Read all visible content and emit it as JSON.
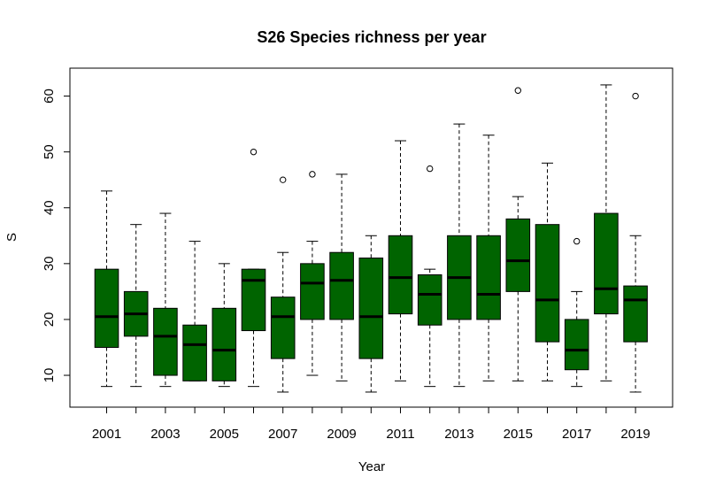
{
  "chart_data": {
    "type": "boxplot",
    "title": "S26 Species richness per year",
    "xlabel": "Year",
    "ylabel": "S",
    "ylim": [
      4.3,
      65
    ],
    "yticks": [
      10,
      20,
      30,
      40,
      50,
      60
    ],
    "xtick_labels_shown": [
      "2001",
      "2003",
      "2005",
      "2007",
      "2009",
      "2011",
      "2013",
      "2015",
      "2017",
      "2019"
    ],
    "box_color": "#006400",
    "categories": [
      "2001",
      "2002",
      "2003",
      "2004",
      "2005",
      "2006",
      "2007",
      "2008",
      "2009",
      "2010",
      "2011",
      "2012",
      "2013",
      "2014",
      "2015",
      "2016",
      "2017",
      "2018",
      "2019"
    ],
    "boxes": [
      {
        "year": "2001",
        "min": 8,
        "q1": 15,
        "median": 20.5,
        "q3": 29,
        "max": 43,
        "outliers": []
      },
      {
        "year": "2002",
        "min": 8,
        "q1": 17,
        "median": 21,
        "q3": 25,
        "max": 37,
        "outliers": []
      },
      {
        "year": "2003",
        "min": 8,
        "q1": 10,
        "median": 17,
        "q3": 22,
        "max": 39,
        "outliers": []
      },
      {
        "year": "2004",
        "min": 9,
        "q1": 9,
        "median": 15.5,
        "q3": 19,
        "max": 34,
        "outliers": []
      },
      {
        "year": "2005",
        "min": 8,
        "q1": 9,
        "median": 14.5,
        "q3": 22,
        "max": 30,
        "outliers": []
      },
      {
        "year": "2006",
        "min": 8,
        "q1": 18,
        "median": 27,
        "q3": 29,
        "max": 29,
        "outliers": [
          50
        ]
      },
      {
        "year": "2007",
        "min": 7,
        "q1": 13,
        "median": 20.5,
        "q3": 24,
        "max": 32,
        "outliers": [
          45
        ]
      },
      {
        "year": "2008",
        "min": 10,
        "q1": 20,
        "median": 26.5,
        "q3": 30,
        "max": 34,
        "outliers": [
          46
        ]
      },
      {
        "year": "2009",
        "min": 9,
        "q1": 20,
        "median": 27,
        "q3": 32,
        "max": 46,
        "outliers": []
      },
      {
        "year": "2010",
        "min": 7,
        "q1": 13,
        "median": 20.5,
        "q3": 31,
        "max": 35,
        "outliers": []
      },
      {
        "year": "2011",
        "min": 9,
        "q1": 21,
        "median": 27.5,
        "q3": 35,
        "max": 52,
        "outliers": []
      },
      {
        "year": "2012",
        "min": 8,
        "q1": 19,
        "median": 24.5,
        "q3": 28,
        "max": 29,
        "outliers": [
          47
        ]
      },
      {
        "year": "2013",
        "min": 8,
        "q1": 20,
        "median": 27.5,
        "q3": 35,
        "max": 55,
        "outliers": []
      },
      {
        "year": "2014",
        "min": 9,
        "q1": 20,
        "median": 24.5,
        "q3": 35,
        "max": 53,
        "outliers": []
      },
      {
        "year": "2015",
        "min": 9,
        "q1": 25,
        "median": 30.5,
        "q3": 38,
        "max": 42,
        "outliers": [
          61
        ]
      },
      {
        "year": "2016",
        "min": 9,
        "q1": 16,
        "median": 23.5,
        "q3": 37,
        "max": 48,
        "outliers": []
      },
      {
        "year": "2017",
        "min": 8,
        "q1": 11,
        "median": 14.5,
        "q3": 20,
        "max": 25,
        "outliers": [
          34
        ]
      },
      {
        "year": "2018",
        "min": 9,
        "q1": 21,
        "median": 25.5,
        "q3": 39,
        "max": 62,
        "outliers": []
      },
      {
        "year": "2019",
        "min": 7,
        "q1": 16,
        "median": 23.5,
        "q3": 26,
        "max": 35,
        "outliers": [
          60
        ]
      }
    ]
  }
}
